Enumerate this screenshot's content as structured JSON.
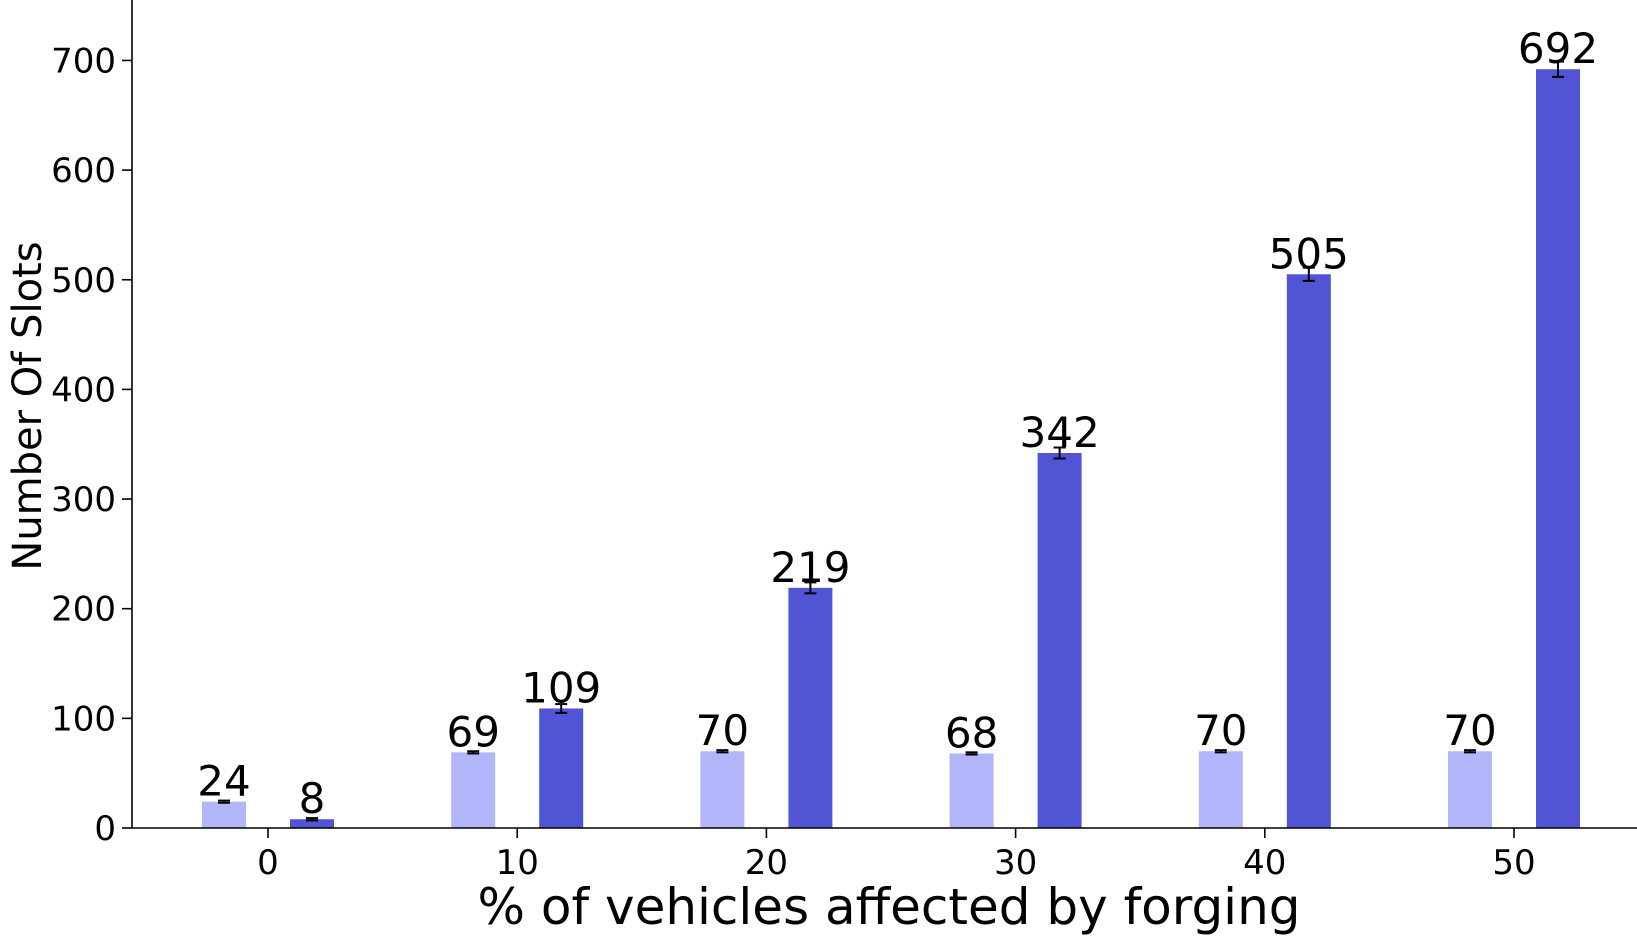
{
  "chart_data": {
    "type": "bar",
    "title": "",
    "xlabel": "% of vehicles affected by forging",
    "ylabel": "Number Of Slots",
    "categories": [
      "0",
      "10",
      "20",
      "30",
      "40",
      "50"
    ],
    "series": [
      {
        "values": [
          24,
          69,
          70,
          68,
          70,
          70
        ],
        "errors": [
          1,
          1,
          1,
          1,
          1,
          1
        ],
        "color": "#b3b5fb"
      },
      {
        "values": [
          8,
          109,
          219,
          342,
          505,
          692
        ],
        "errors": [
          1,
          4,
          5,
          5,
          6,
          7
        ],
        "color": "#5154d4"
      }
    ],
    "ylim": [
      0,
      750
    ],
    "yticks": [
      0,
      100,
      200,
      300,
      400,
      500,
      600,
      700
    ],
    "grid": false,
    "legend": "none",
    "colors": {
      "axis": "#000000",
      "errorbar": "#000000",
      "background": "#ffffff"
    }
  }
}
